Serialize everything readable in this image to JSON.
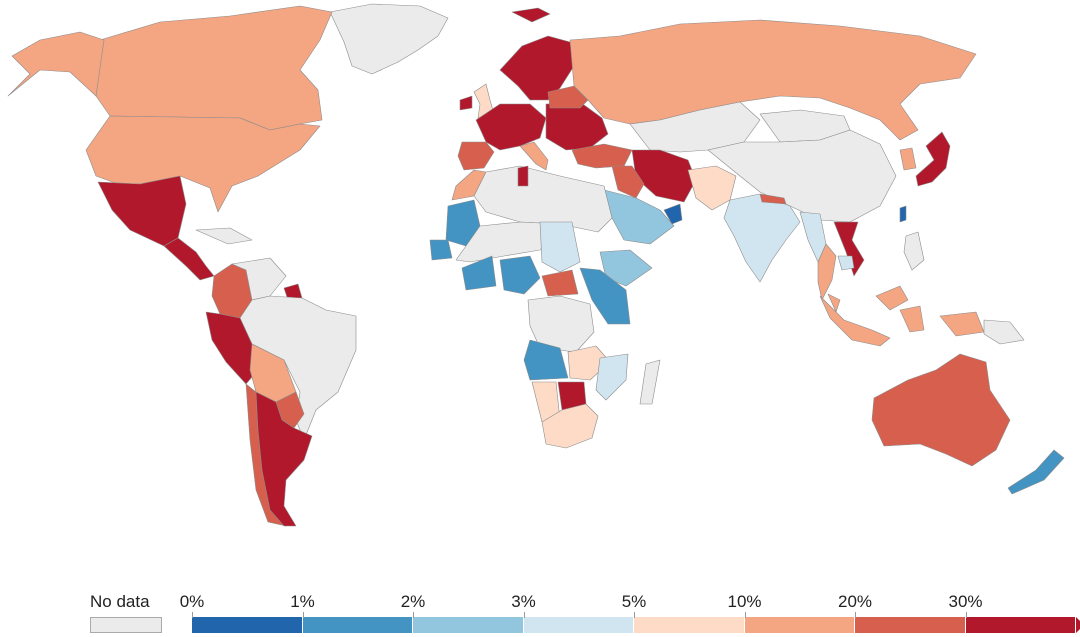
{
  "colors": {
    "nodata": "#ebebeb",
    "b0": "#2166ac",
    "b1": "#4393c3",
    "b2": "#92c5de",
    "b3": "#d1e5f0",
    "b4": "#fddbc7",
    "b5": "#f4a582",
    "b6": "#d6604d",
    "b7": "#b2182b"
  },
  "legend": {
    "nodata_label": "No data",
    "tick_labels": [
      "0%",
      "1%",
      "2%",
      "3%",
      "5%",
      "10%",
      "20%",
      "30%"
    ],
    "bins": [
      "b0",
      "b1",
      "b2",
      "b3",
      "b4",
      "b5",
      "b6",
      "b7"
    ]
  },
  "regions": [
    {
      "name": "greenland",
      "color": "nodata"
    },
    {
      "name": "canada",
      "color": "b5"
    },
    {
      "name": "usa",
      "color": "b5"
    },
    {
      "name": "alaska",
      "color": "b5"
    },
    {
      "name": "mexico",
      "color": "b7"
    },
    {
      "name": "central-america",
      "color": "b7"
    },
    {
      "name": "cuba",
      "color": "nodata"
    },
    {
      "name": "colombia",
      "color": "b6"
    },
    {
      "name": "venezuela",
      "color": "nodata"
    },
    {
      "name": "suriname",
      "color": "b7"
    },
    {
      "name": "peru",
      "color": "b7"
    },
    {
      "name": "brazil",
      "color": "nodata"
    },
    {
      "name": "bolivia",
      "color": "b5"
    },
    {
      "name": "paraguay",
      "color": "b6"
    },
    {
      "name": "chile",
      "color": "b6"
    },
    {
      "name": "argentina",
      "color": "b7"
    },
    {
      "name": "iceland",
      "color": "b7"
    },
    {
      "name": "uk",
      "color": "b4"
    },
    {
      "name": "ireland",
      "color": "b7"
    },
    {
      "name": "scandinavia",
      "color": "b7"
    },
    {
      "name": "western-europe",
      "color": "b7"
    },
    {
      "name": "iberia",
      "color": "b6"
    },
    {
      "name": "italy",
      "color": "b5"
    },
    {
      "name": "eastern-europe",
      "color": "b7"
    },
    {
      "name": "belarus",
      "color": "b6"
    },
    {
      "name": "russia",
      "color": "b5"
    },
    {
      "name": "turkey",
      "color": "b6"
    },
    {
      "name": "iran",
      "color": "b7"
    },
    {
      "name": "iraq",
      "color": "b6"
    },
    {
      "name": "saudi-arabia",
      "color": "b2"
    },
    {
      "name": "uae",
      "color": "b0"
    },
    {
      "name": "kazakhstan",
      "color": "nodata"
    },
    {
      "name": "mongolia",
      "color": "nodata"
    },
    {
      "name": "china",
      "color": "nodata"
    },
    {
      "name": "afghanistan",
      "color": "b4"
    },
    {
      "name": "india",
      "color": "b3"
    },
    {
      "name": "nepal",
      "color": "b6"
    },
    {
      "name": "myanmar",
      "color": "b3"
    },
    {
      "name": "thailand",
      "color": "b5"
    },
    {
      "name": "vietnam",
      "color": "b7"
    },
    {
      "name": "cambodia",
      "color": "b3"
    },
    {
      "name": "taiwan",
      "color": "b0"
    },
    {
      "name": "korea",
      "color": "b5"
    },
    {
      "name": "japan",
      "color": "b7"
    },
    {
      "name": "philippines",
      "color": "nodata"
    },
    {
      "name": "malaysia",
      "color": "b5"
    },
    {
      "name": "indonesia",
      "color": "b5"
    },
    {
      "name": "png",
      "color": "nodata"
    },
    {
      "name": "australia",
      "color": "b6"
    },
    {
      "name": "new-zealand",
      "color": "b1"
    },
    {
      "name": "morocco",
      "color": "b5"
    },
    {
      "name": "algeria-libya-egypt",
      "color": "nodata"
    },
    {
      "name": "tunisia",
      "color": "b7"
    },
    {
      "name": "mauritania",
      "color": "b1"
    },
    {
      "name": "senegal",
      "color": "b1"
    },
    {
      "name": "sahel",
      "color": "nodata"
    },
    {
      "name": "ghana",
      "color": "b1"
    },
    {
      "name": "nigeria",
      "color": "b1"
    },
    {
      "name": "sudan",
      "color": "b3"
    },
    {
      "name": "south-sudan",
      "color": "b6"
    },
    {
      "name": "ethiopia",
      "color": "b2"
    },
    {
      "name": "uganda-kenya",
      "color": "b1"
    },
    {
      "name": "drc",
      "color": "nodata"
    },
    {
      "name": "angola",
      "color": "b1"
    },
    {
      "name": "zambia",
      "color": "b4"
    },
    {
      "name": "mozambique",
      "color": "b3"
    },
    {
      "name": "namibia",
      "color": "b4"
    },
    {
      "name": "botswana",
      "color": "b7"
    },
    {
      "name": "south-africa",
      "color": "b4"
    },
    {
      "name": "madagascar",
      "color": "nodata"
    }
  ]
}
